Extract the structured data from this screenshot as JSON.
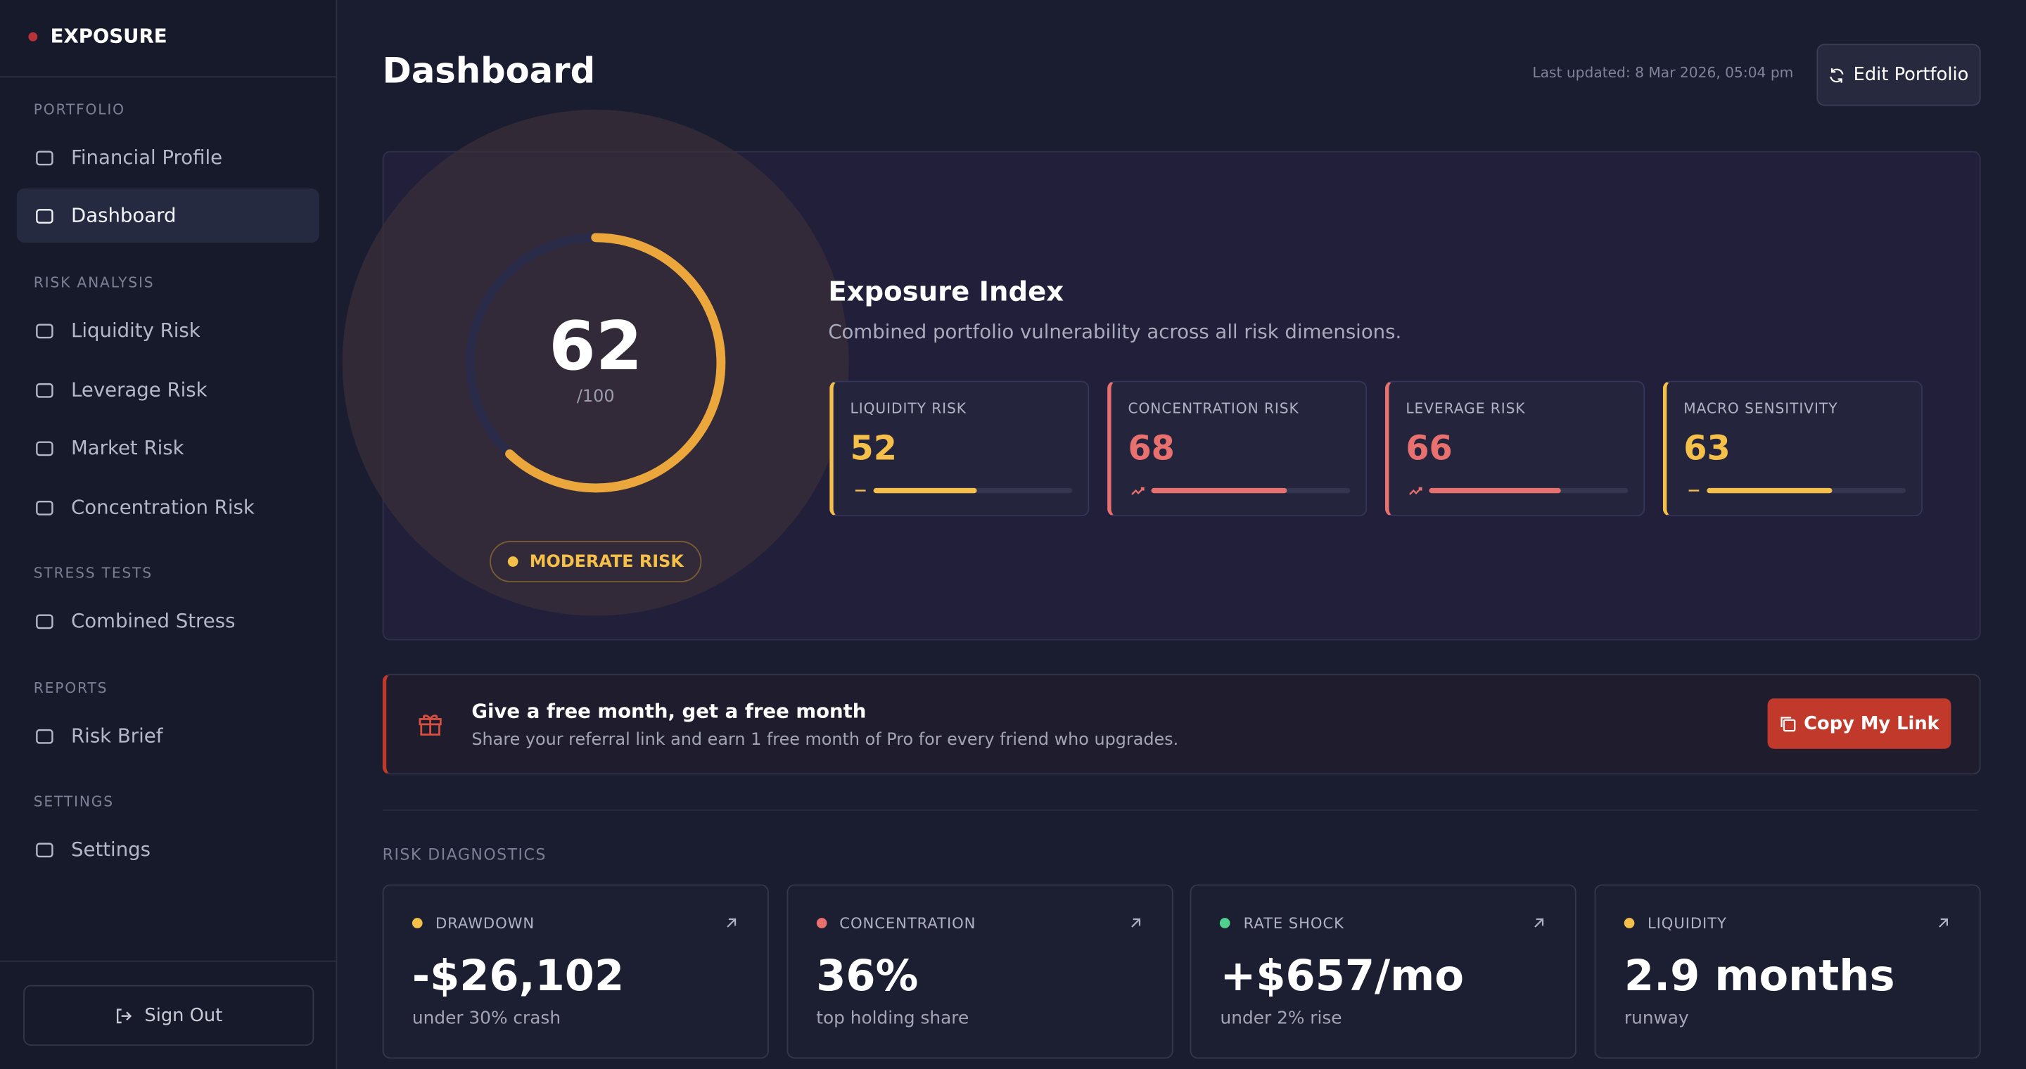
{
  "sidebar": {
    "brand": "EXPOSURE",
    "sections": [
      {
        "title": "PORTFOLIO",
        "items": [
          {
            "label": "Financial Profile"
          },
          {
            "label": "Dashboard",
            "active": true
          }
        ]
      },
      {
        "title": "RISK ANALYSIS",
        "items": [
          {
            "label": "Liquidity Risk"
          },
          {
            "label": "Leverage Risk"
          },
          {
            "label": "Market Risk"
          },
          {
            "label": "Concentration Risk"
          }
        ]
      },
      {
        "title": "STRESS TESTS",
        "items": [
          {
            "label": "Combined Stress"
          }
        ]
      },
      {
        "title": "REPORTS",
        "items": [
          {
            "label": "Risk Brief"
          }
        ]
      },
      {
        "title": "SETTINGS",
        "items": [
          {
            "label": "Settings"
          }
        ]
      }
    ],
    "sign_out": "Sign Out"
  },
  "header": {
    "title": "Dashboard",
    "last_updated": "Last updated: 8 Mar 2026, 05:04 pm",
    "edit_button": "Edit Portfolio"
  },
  "exposure": {
    "score": 62,
    "scale": {
      "value": 100,
      "label": "/100"
    },
    "risk_level": "MODERATE RISK",
    "title": "Exposure Index",
    "subtitle": "Combined portfolio vulnerability across all risk dimensions.",
    "metrics": [
      {
        "name": "LIQUIDITY RISK",
        "value": 52,
        "color": "#f5c04a",
        "trend": "flat"
      },
      {
        "name": "CONCENTRATION RISK",
        "value": 68,
        "color": "#e8716f",
        "trend": "up"
      },
      {
        "name": "LEVERAGE RISK",
        "value": 66,
        "color": "#e8716f",
        "trend": "up"
      },
      {
        "name": "MACRO SENSITIVITY",
        "value": 63,
        "color": "#f5c04a",
        "trend": "flat"
      }
    ]
  },
  "referral": {
    "title": "Give a free month, get a free month",
    "text": "Share your referral link and earn 1 free month of Pro for every friend who upgrades.",
    "button": "Copy My Link"
  },
  "diagnostics": {
    "title": "RISK DIAGNOSTICS",
    "cards": [
      {
        "label": "DRAWDOWN",
        "value": "-$26,102",
        "caption": "under 30% crash",
        "color": "#f5c04a"
      },
      {
        "label": "CONCENTRATION",
        "value": "36%",
        "caption": "top holding share",
        "color": "#e8716f"
      },
      {
        "label": "RATE SHOCK",
        "value": "+$657/mo",
        "caption": "under 2% rise",
        "color": "#4fd08f"
      },
      {
        "label": "LIQUIDITY",
        "value": "2.9 months",
        "caption": "runway",
        "color": "#f5c04a"
      }
    ]
  }
}
